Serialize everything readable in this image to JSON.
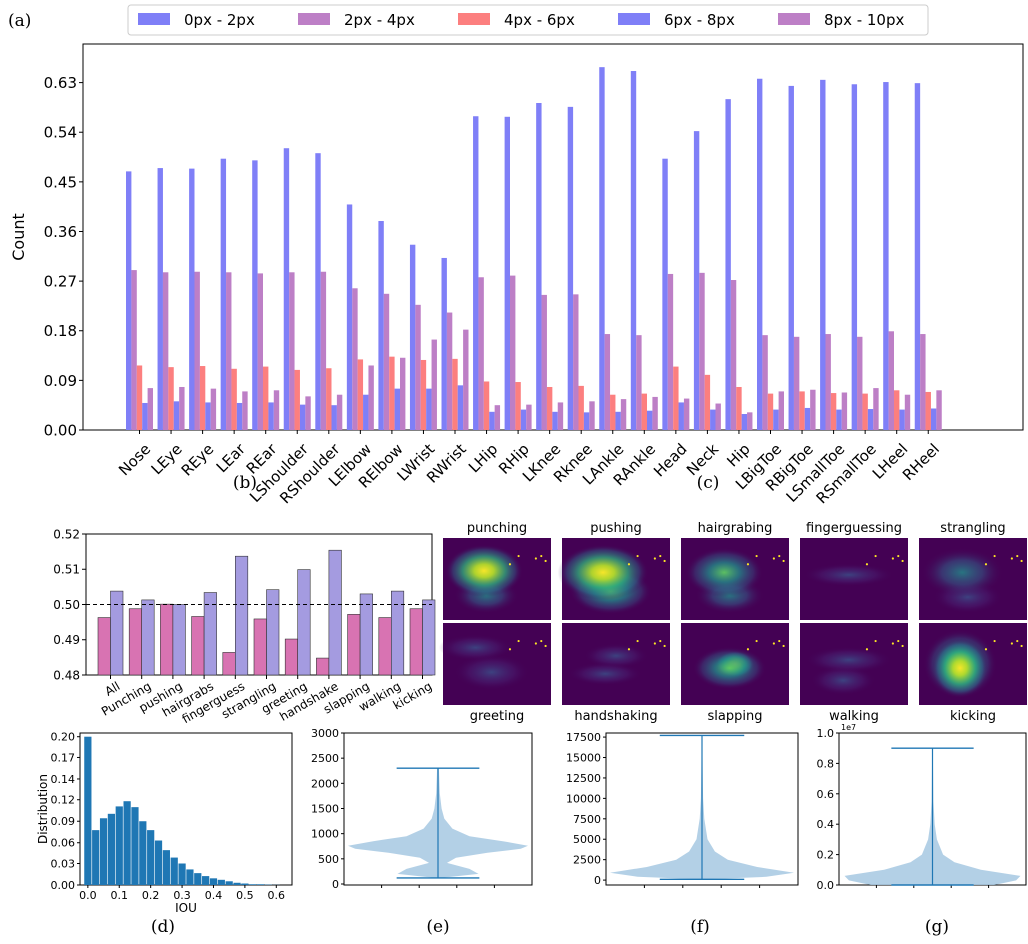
{
  "panel_labels": {
    "a": "(a)",
    "b": "(b)",
    "c": "(c)",
    "d": "(d)",
    "e": "(e)",
    "f": "(f)",
    "g": "(g)"
  },
  "colors": {
    "blue": "#7f7ff7",
    "purple": "#bd7fc6",
    "red": "#fc7f7f",
    "pink": "#d873b2",
    "lavender": "#a49be0",
    "hist": "#1f77b4",
    "violin": "#a6c8e2",
    "violin_line": "#1f77b4"
  },
  "chart_data": [
    {
      "id": "a",
      "type": "bar",
      "ylabel": "Count",
      "ylim": [
        0,
        0.7
      ],
      "yticks": [
        "0.00",
        "0.09",
        "0.18",
        "0.27",
        "0.36",
        "0.45",
        "0.54",
        "0.63"
      ],
      "legend_position": "top",
      "categories": [
        "Nose",
        "LEye",
        "REye",
        "LEar",
        "REar",
        "LShoulder",
        "RShoulder",
        "LElbow",
        "RElbow",
        "LWrist",
        "RWrist",
        "LHip",
        "RHip",
        "LKnee",
        "Rknee",
        "LAnkle",
        "RAnkle",
        "Head",
        "Neck",
        "Hip",
        "LBigToe",
        "RBigToe",
        "LSmallToe",
        "RSmallToe",
        "LHeel",
        "RHeel"
      ],
      "series": [
        {
          "name": "0px - 2px",
          "values": [
            0.469,
            0.475,
            0.474,
            0.492,
            0.489,
            0.511,
            0.502,
            0.409,
            0.379,
            0.336,
            0.312,
            0.569,
            0.568,
            0.593,
            0.586,
            0.658,
            0.651,
            0.492,
            0.542,
            0.6,
            0.637,
            0.624,
            0.635,
            0.627,
            0.631,
            0.629
          ]
        },
        {
          "name": "2px - 4px",
          "values": [
            0.29,
            0.286,
            0.287,
            0.286,
            0.284,
            0.286,
            0.287,
            0.257,
            0.247,
            0.227,
            0.213,
            0.277,
            0.28,
            0.245,
            0.246,
            0.174,
            0.172,
            0.283,
            0.285,
            0.272,
            0.172,
            0.169,
            0.174,
            0.169,
            0.179,
            0.174
          ]
        },
        {
          "name": "4px - 6px",
          "values": [
            0.117,
            0.114,
            0.116,
            0.111,
            0.115,
            0.109,
            0.112,
            0.128,
            0.133,
            0.127,
            0.129,
            0.088,
            0.087,
            0.078,
            0.08,
            0.064,
            0.066,
            0.115,
            0.1,
            0.078,
            0.066,
            0.07,
            0.067,
            0.066,
            0.072,
            0.069
          ]
        },
        {
          "name": "6px - 8px",
          "values": [
            0.049,
            0.052,
            0.05,
            0.049,
            0.05,
            0.046,
            0.045,
            0.064,
            0.075,
            0.075,
            0.081,
            0.033,
            0.037,
            0.033,
            0.032,
            0.033,
            0.035,
            0.05,
            0.037,
            0.029,
            0.037,
            0.04,
            0.037,
            0.038,
            0.037,
            0.039
          ]
        },
        {
          "name": "8px - 10px",
          "values": [
            0.076,
            0.078,
            0.075,
            0.07,
            0.072,
            0.061,
            0.064,
            0.117,
            0.131,
            0.164,
            0.182,
            0.045,
            0.046,
            0.05,
            0.052,
            0.056,
            0.06,
            0.057,
            0.048,
            0.032,
            0.07,
            0.073,
            0.068,
            0.076,
            0.064,
            0.072
          ]
        }
      ]
    },
    {
      "id": "b",
      "type": "bar",
      "ylim": [
        0.48,
        0.52
      ],
      "yticks": [
        "0.48",
        "0.49",
        "0.50",
        "0.51",
        "0.52"
      ],
      "reference_line": 0.5,
      "categories": [
        "All",
        "Punching",
        "pushing",
        "hairgrabs",
        "fingerguess",
        "strangling",
        "greeting",
        "handshake",
        "slapping",
        "walking",
        "kicking"
      ],
      "series": [
        {
          "values": [
            0.4963,
            0.4988,
            0.5001,
            0.4966,
            0.4864,
            0.4959,
            0.4902,
            0.4848,
            0.4972,
            0.4963,
            0.4988
          ]
        },
        {
          "values": [
            0.5038,
            0.5013,
            0.5,
            0.5034,
            0.5137,
            0.5042,
            0.5099,
            0.5154,
            0.503,
            0.5038,
            0.5013
          ]
        }
      ]
    },
    {
      "id": "c",
      "type": "heatmap",
      "titles_top": [
        "punching",
        "pushing",
        "hairgrabing",
        "fingerguessing",
        "strangling"
      ],
      "titles_bottom": [
        "greeting",
        "handshaking",
        "slapping",
        "walking",
        "kicking"
      ]
    },
    {
      "id": "d",
      "type": "bar",
      "xlabel": "IOU",
      "ylabel": "Distribution",
      "xlim": [
        -0.025,
        0.65
      ],
      "ylim": [
        0,
        0.205
      ],
      "xticks": [
        "0.0",
        "0.1",
        "0.2",
        "0.3",
        "0.4",
        "0.5",
        "0.6"
      ],
      "yticks": [
        "0.00",
        "0.03",
        "0.06",
        "0.09",
        "0.12",
        "0.14",
        "0.17",
        "0.20"
      ],
      "x": [
        0.0,
        0.025,
        0.05,
        0.075,
        0.1,
        0.125,
        0.15,
        0.175,
        0.2,
        0.225,
        0.25,
        0.275,
        0.3,
        0.325,
        0.35,
        0.375,
        0.4,
        0.425,
        0.45,
        0.475,
        0.5,
        0.525,
        0.55,
        0.575,
        0.6
      ],
      "values": [
        0.2,
        0.074,
        0.09,
        0.096,
        0.106,
        0.113,
        0.105,
        0.086,
        0.074,
        0.06,
        0.047,
        0.037,
        0.029,
        0.021,
        0.016,
        0.012,
        0.009,
        0.007,
        0.005,
        0.003,
        0.002,
        0.001,
        0.001,
        0.0005,
        0.0002
      ]
    },
    {
      "id": "e",
      "type": "violin",
      "ylim": [
        -20,
        3000
      ],
      "yticks": [
        "0",
        "500",
        "1000",
        "1500",
        "2000",
        "2500",
        "3000"
      ],
      "min": 120,
      "max": 2300,
      "profile": [
        [
          120,
          0.02
        ],
        [
          200,
          0.45
        ],
        [
          300,
          0.35
        ],
        [
          420,
          0.1
        ],
        [
          520,
          0.2
        ],
        [
          620,
          0.55
        ],
        [
          700,
          0.92
        ],
        [
          760,
          1.0
        ],
        [
          850,
          0.72
        ],
        [
          950,
          0.35
        ],
        [
          1100,
          0.16
        ],
        [
          1300,
          0.07
        ],
        [
          1500,
          0.04
        ],
        [
          1800,
          0.02
        ],
        [
          2300,
          0.01
        ]
      ]
    },
    {
      "id": "f",
      "type": "violin",
      "ylim": [
        -600,
        18000
      ],
      "yticks": [
        "0",
        "2500",
        "5000",
        "7500",
        "10000",
        "12500",
        "15000",
        "17500"
      ],
      "min": 100,
      "max": 17700,
      "profile": [
        [
          100,
          0.05
        ],
        [
          400,
          0.7
        ],
        [
          900,
          1.0
        ],
        [
          1600,
          0.6
        ],
        [
          2500,
          0.28
        ],
        [
          3500,
          0.14
        ],
        [
          5000,
          0.06
        ],
        [
          7500,
          0.025
        ],
        [
          10000,
          0.012
        ],
        [
          14000,
          0.006
        ],
        [
          17700,
          0.003
        ]
      ]
    },
    {
      "id": "g",
      "type": "violin",
      "ylim": [
        0,
        1.0
      ],
      "yticks": [
        "0.0",
        "0.2",
        "0.4",
        "0.6",
        "0.8",
        "1.0"
      ],
      "scale_label": "1e7",
      "min": 0.0,
      "max": 0.9,
      "profile": [
        [
          0.0,
          0.7
        ],
        [
          0.03,
          0.95
        ],
        [
          0.06,
          1.0
        ],
        [
          0.1,
          0.55
        ],
        [
          0.15,
          0.25
        ],
        [
          0.2,
          0.12
        ],
        [
          0.3,
          0.05
        ],
        [
          0.4,
          0.025
        ],
        [
          0.55,
          0.01
        ],
        [
          0.9,
          0.003
        ]
      ]
    }
  ]
}
